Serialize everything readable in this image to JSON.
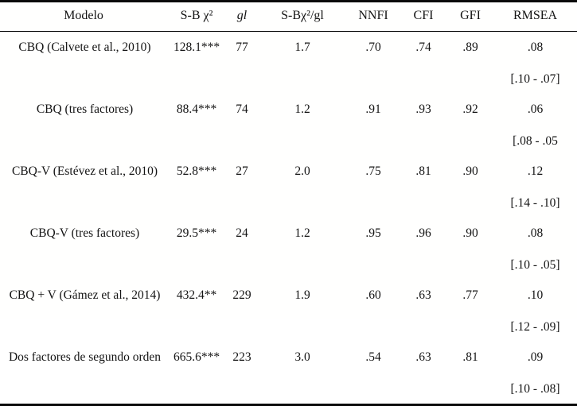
{
  "table": {
    "columns": {
      "model": "Modelo",
      "sb_chi2": "S-B χ²",
      "gl": "gl",
      "ratio": "S-Bχ²/gl",
      "nnfi": "NNFI",
      "cfi": "CFI",
      "gfi": "GFI",
      "rmsea": "RMSEA"
    },
    "rows": [
      {
        "model": "CBQ (Calvete et al., 2010)",
        "sb_chi2": "128.1***",
        "gl": "77",
        "ratio": "1.7",
        "nnfi": ".70",
        "cfi": ".74",
        "gfi": ".89",
        "rmsea": ".08",
        "rmsea_ci": "[.10 - .07]"
      },
      {
        "model": "CBQ (tres factores)",
        "sb_chi2": "88.4***",
        "gl": "74",
        "ratio": "1.2",
        "nnfi": ".91",
        "cfi": ".93",
        "gfi": ".92",
        "rmsea": ".06",
        "rmsea_ci": "[.08 - .05"
      },
      {
        "model": "CBQ-V (Estévez et al., 2010)",
        "sb_chi2": "52.8***",
        "gl": "27",
        "ratio": "2.0",
        "nnfi": ".75",
        "cfi": ".81",
        "gfi": ".90",
        "rmsea": ".12",
        "rmsea_ci": "[.14 - .10]"
      },
      {
        "model": "CBQ-V (tres factores)",
        "sb_chi2": "29.5***",
        "gl": "24",
        "ratio": "1.2",
        "nnfi": ".95",
        "cfi": ".96",
        "gfi": ".90",
        "rmsea": ".08",
        "rmsea_ci": "[.10 - .05]"
      },
      {
        "model": "CBQ + V (Gámez et al., 2014)",
        "sb_chi2": "432.4**",
        "gl": "229",
        "ratio": "1.9",
        "nnfi": ".60",
        "cfi": ".63",
        "gfi": ".77",
        "rmsea": ".10",
        "rmsea_ci": "[.12 - .09]"
      },
      {
        "model": "Dos factores de segundo orden",
        "sb_chi2": "665.6***",
        "gl": "223",
        "ratio": "3.0",
        "nnfi": ".54",
        "cfi": ".63",
        "gfi": ".81",
        "rmsea": ".09",
        "rmsea_ci": "[.10 - .08]"
      }
    ]
  },
  "colors": {
    "text": "#141414",
    "background": "#ffffff",
    "rule": "#0a0a0a"
  }
}
